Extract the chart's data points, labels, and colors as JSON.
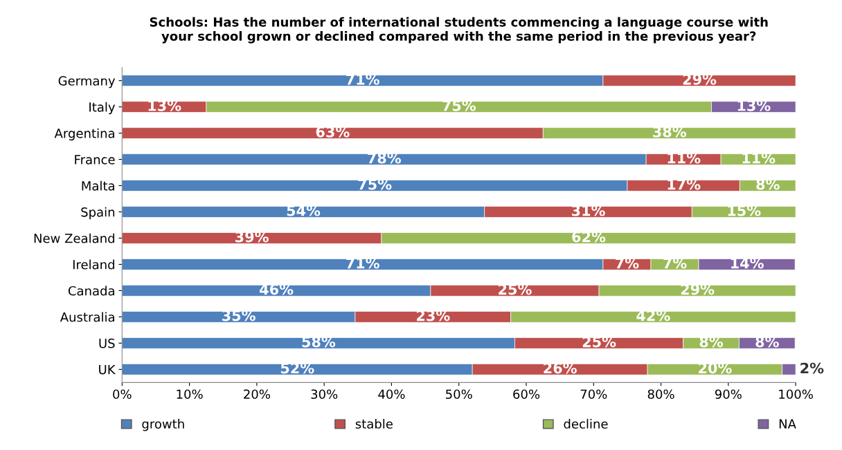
{
  "chart_data": {
    "type": "bar",
    "orientation": "horizontal",
    "stacked": true,
    "title": "Schools: Has the number of international students commencing a language course with\nyour school grown or declined compared with the same period in the previous year?",
    "categories": [
      "Germany",
      "Italy",
      "Argentina",
      "France",
      "Malta",
      "Spain",
      "New Zealand",
      "Ireland",
      "Canada",
      "Australia",
      "US",
      "UK"
    ],
    "series": [
      {
        "name": "growth",
        "color": "#4f81bd",
        "values": [
          71.4,
          null,
          null,
          77.8,
          75,
          53.8,
          null,
          71.4,
          45.8,
          34.6,
          58.3,
          52
        ],
        "value_labels": [
          "71%",
          null,
          null,
          "78%",
          "75%",
          "54%",
          null,
          "71%",
          "46%",
          "35%",
          "58%",
          "52%"
        ]
      },
      {
        "name": "stable",
        "color": "#c0504d",
        "values": [
          28.6,
          12.5,
          62.5,
          11.1,
          16.7,
          30.8,
          38.5,
          7.1,
          25,
          23.1,
          25,
          26
        ],
        "value_labels": [
          "29%",
          "13%",
          "63%",
          "11%",
          "17%",
          "31%",
          "39%",
          "7%",
          "25%",
          "23%",
          "25%",
          "26%"
        ]
      },
      {
        "name": "decline",
        "color": "#9bbb59",
        "values": [
          null,
          75,
          37.5,
          11.1,
          8.3,
          15.4,
          61.5,
          7.1,
          29.2,
          42.3,
          8.3,
          20
        ],
        "value_labels": [
          null,
          "75%",
          "38%",
          "11%",
          "8%",
          "15%",
          "62%",
          "7%",
          "29%",
          "42%",
          "8%",
          "20%"
        ]
      },
      {
        "name": "NA",
        "color": "#8064a2",
        "values": [
          null,
          12.5,
          null,
          null,
          null,
          null,
          null,
          14.3,
          null,
          null,
          8.3,
          2
        ],
        "value_labels": [
          null,
          "13%",
          null,
          null,
          null,
          null,
          null,
          "14%",
          null,
          null,
          "8%",
          "2%"
        ]
      }
    ],
    "xlim": [
      0,
      100
    ],
    "xticks": [
      {
        "value": 0,
        "label": "0%"
      },
      {
        "value": 10,
        "label": "10%"
      },
      {
        "value": 20,
        "label": "20%"
      },
      {
        "value": 30,
        "label": "30%"
      },
      {
        "value": 40,
        "label": "40%"
      },
      {
        "value": 50,
        "label": "50%"
      },
      {
        "value": 60,
        "label": "60%"
      },
      {
        "value": 70,
        "label": "70%"
      },
      {
        "value": 80,
        "label": "80%"
      },
      {
        "value": 90,
        "label": "90%"
      },
      {
        "value": 100,
        "label": "100%"
      }
    ],
    "legend": "bottom",
    "grid": false
  }
}
